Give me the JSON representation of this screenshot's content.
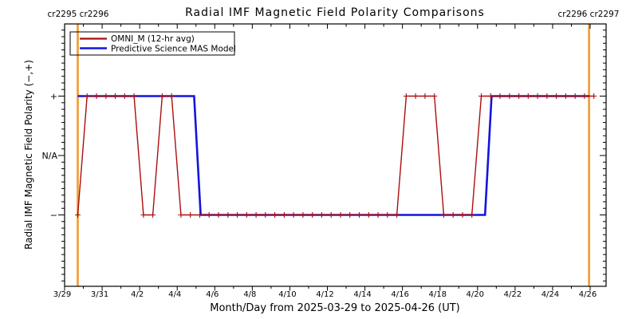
{
  "title": "Radial IMF Magnetic Field Polarity Comparisons",
  "annotations": {
    "top_left": "cr2295 cr2296",
    "top_right": "cr2296 cr2297"
  },
  "legend": {
    "entries": [
      {
        "label": "OMNI_M (12-hr avg)",
        "color": "#aa0e0e"
      },
      {
        "label": "Predictive Science MAS Model",
        "color": "#1414dd"
      }
    ]
  },
  "colors": {
    "orange": "#f2a13c",
    "red": "#aa0e0e",
    "blue": "#1414dd",
    "axis": "#000000",
    "background": "#ffffff"
  },
  "chart_data": {
    "type": "line",
    "title": "Radial IMF Magnetic Field Polarity Comparisons",
    "xlabel": "Month/Day from 2025-03-29 to 2025-04-26 (UT)",
    "ylabel": "Radial IMF Magnetic Field Polarity (−,+)",
    "grid": false,
    "legend_position": "top-left-inside",
    "x_axis": {
      "start_date": "2025-03-29",
      "end_date": "2025-04-26",
      "range_days": [
        0,
        28.85
      ],
      "tick_days": [
        0,
        2,
        4,
        6,
        8,
        10,
        12,
        14,
        16,
        18,
        20,
        22,
        24,
        26,
        28
      ],
      "tick_labels": [
        "3/29",
        "3/31",
        "4/2",
        "4/4",
        "4/6",
        "4/8",
        "4/10",
        "4/12",
        "4/14",
        "4/16",
        "4/18",
        "4/20",
        "4/22",
        "4/24",
        "4/26"
      ],
      "minor_tick_interval_days": 1
    },
    "y_axis": {
      "range": [
        -2.2,
        2.2
      ],
      "tick_values": [
        1,
        0,
        -1
      ],
      "tick_labels": [
        "+",
        "N/A",
        "−"
      ],
      "minor_divisions_per_unit": 9
    },
    "series": [
      {
        "name": "OMNI_M (12-hr avg)",
        "color": "#aa0e0e",
        "marker": "plus",
        "start_day": 0.7,
        "step_days": 0.5,
        "values": [
          -1,
          1,
          1,
          1,
          1,
          1,
          1,
          -1,
          -1,
          1,
          1,
          -1,
          -1,
          -1,
          -1,
          -1,
          -1,
          -1,
          -1,
          -1,
          -1,
          -1,
          -1,
          -1,
          -1,
          -1,
          -1,
          -1,
          -1,
          -1,
          -1,
          -1,
          -1,
          -1,
          -1,
          1,
          1,
          1,
          1,
          -1,
          -1,
          -1,
          -1,
          1,
          1,
          1,
          1,
          1,
          1,
          1,
          1,
          1,
          1,
          1,
          1,
          1
        ]
      },
      {
        "name": "Predictive Science MAS Model",
        "color": "#1414dd",
        "marker": "none",
        "points": [
          [
            0.7,
            1
          ],
          [
            6.9,
            1
          ],
          [
            7.25,
            -1
          ],
          [
            22.4,
            -1
          ],
          [
            22.75,
            1
          ],
          [
            27.95,
            1
          ]
        ]
      }
    ],
    "carrington_lines": [
      {
        "day": 0.7,
        "label": "cr2295 cr2296"
      },
      {
        "day": 27.94,
        "label": "cr2296 cr2297"
      }
    ]
  }
}
